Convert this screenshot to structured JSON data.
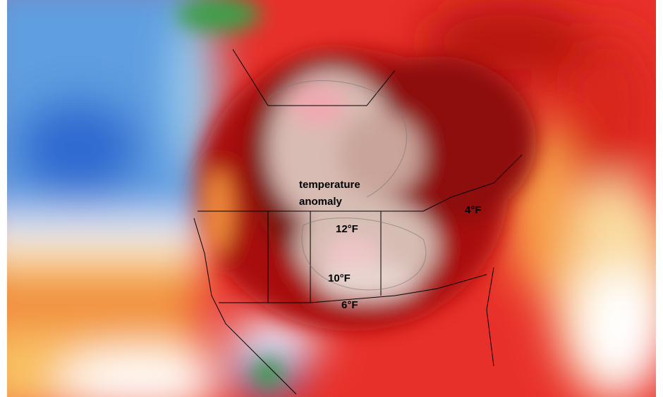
{
  "map": {
    "annotations": [
      {
        "text": "temperature"
      },
      {
        "text": "anomaly"
      },
      {
        "text": "12°F"
      },
      {
        "text": "10°F"
      },
      {
        "text": "6°F"
      },
      {
        "text": "4°F"
      }
    ]
  }
}
